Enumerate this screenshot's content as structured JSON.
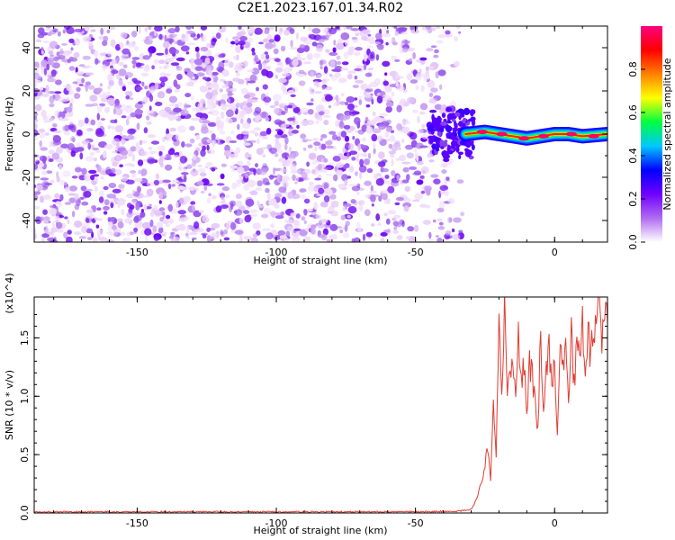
{
  "title": "C2E1.2023.167.01.34.R02",
  "chart_data": [
    {
      "type": "heatmap",
      "title": "C2E1.2023.167.01.34.R02",
      "xlabel": "Height of straight line (km)",
      "ylabel": "Frequency (Hz)",
      "xlim": [
        -187,
        19
      ],
      "ylim": [
        -50,
        50
      ],
      "xticks": [
        "-150",
        "-100",
        "-50",
        "0"
      ],
      "yticks": [
        "-40",
        "-20",
        "0",
        "20",
        "40"
      ],
      "colorbar": {
        "label": "Normalized spectral amplitude",
        "ticks": [
          "0.0",
          "0.2",
          "0.4",
          "0.6",
          "0.8"
        ],
        "range": [
          0,
          1
        ],
        "colormap": [
          "#ffffff",
          "#b06cf0",
          "#7000ff",
          "#0000ff",
          "#00c8ff",
          "#00ff40",
          "#ffff00",
          "#ff8000",
          "#ff0000",
          "#ff0080"
        ]
      },
      "noise_region": {
        "x_range": [
          -187,
          -33
        ],
        "freq_range": [
          -50,
          50
        ],
        "amplitude": 0.05
      },
      "signal_ridge": {
        "x_range": [
          -32,
          19
        ],
        "frequency": [
          {
            "x": -32,
            "f": 0
          },
          {
            "x": -25,
            "f": 1
          },
          {
            "x": -20,
            "f": 0
          },
          {
            "x": -15,
            "f": -1
          },
          {
            "x": -10,
            "f": -2
          },
          {
            "x": -5,
            "f": -1
          },
          {
            "x": 0,
            "f": 0
          },
          {
            "x": 5,
            "f": 0
          },
          {
            "x": 10,
            "f": -1
          },
          {
            "x": 19,
            "f": 0
          }
        ],
        "peak_amplitude": 0.95
      }
    },
    {
      "type": "line",
      "xlabel": "Height of straight line (km)",
      "ylabel": "SNR (10 * v/v)",
      "y_multiplier": "(x10^4)",
      "xlim": [
        -187,
        19
      ],
      "ylim": [
        0,
        1.85
      ],
      "xticks": [
        "-150",
        "-100",
        "-50",
        "0"
      ],
      "yticks": [
        "0.0",
        "0.5",
        "1.0",
        "1.5"
      ],
      "color": "#e03c32",
      "series": [
        {
          "x": [
            -187,
            -150,
            -100,
            -50,
            -35,
            -30,
            -28,
            -26,
            -24,
            -23,
            -22,
            -21,
            -20,
            -19,
            -18,
            -17,
            -16,
            -15,
            -14,
            -13,
            -12,
            -11,
            -10,
            -9,
            -8,
            -7,
            -6,
            -5,
            -4,
            -3,
            -2,
            -1,
            0,
            1,
            2,
            3,
            4,
            5,
            6,
            7,
            8,
            9,
            10,
            11,
            12,
            13,
            14,
            15,
            16,
            17,
            18,
            19
          ],
          "y": [
            0.01,
            0.01,
            0.01,
            0.01,
            0.015,
            0.03,
            0.12,
            0.3,
            0.55,
            0.25,
            0.9,
            0.45,
            1.55,
            1.05,
            1.83,
            0.9,
            1.25,
            1.4,
            1.08,
            1.55,
            1.1,
            1.3,
            0.85,
            1.25,
            1.18,
            0.95,
            0.72,
            1.55,
            0.9,
            1.28,
            1.42,
            1.1,
            1.3,
            0.68,
            1.48,
            1.2,
            1.35,
            0.95,
            1.6,
            1.08,
            1.5,
            1.25,
            1.7,
            1.1,
            1.55,
            1.3,
            1.65,
            1.5,
            1.83,
            1.4,
            1.82,
            1.62
          ]
        }
      ]
    }
  ]
}
